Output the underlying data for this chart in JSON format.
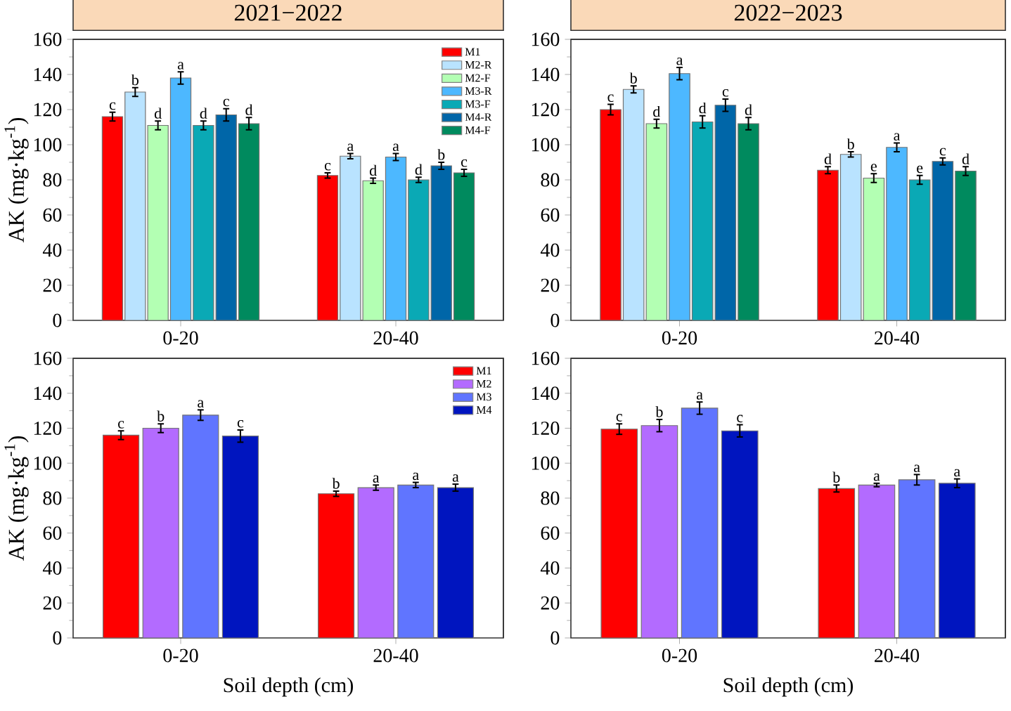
{
  "chart_data": [
    {
      "type": "bar",
      "title": "2021−2022",
      "ylabel": "AK (mg·kg$^{-1}$)",
      "categories": [
        "0-20",
        "20-40"
      ],
      "ylim": [
        0,
        160
      ],
      "yticks": [
        0,
        20,
        40,
        60,
        80,
        100,
        120,
        140,
        160
      ],
      "legend": "top right",
      "series": [
        {
          "name": "M1",
          "color": "#ff0000",
          "values": [
            116,
            82.5
          ],
          "errors": [
            2.5,
            1.5
          ],
          "value_labels": [
            "c",
            "c"
          ]
        },
        {
          "name": "M2-R",
          "color": "#b9e3ff",
          "values": [
            130,
            93.5
          ],
          "errors": [
            2.5,
            1.5
          ],
          "value_labels": [
            "b",
            "a"
          ]
        },
        {
          "name": "M2-F",
          "color": "#b3ffb3",
          "values": [
            111,
            79.5
          ],
          "errors": [
            2.5,
            1.5
          ],
          "value_labels": [
            "d",
            "d"
          ]
        },
        {
          "name": "M3-R",
          "color": "#4db8ff",
          "values": [
            138,
            93
          ],
          "errors": [
            3.5,
            2
          ],
          "value_labels": [
            "a",
            "a"
          ]
        },
        {
          "name": "M3-F",
          "color": "#0aa9b5",
          "values": [
            111,
            80
          ],
          "errors": [
            2.5,
            1.5
          ],
          "value_labels": [
            "d",
            "d"
          ]
        },
        {
          "name": "M4-R",
          "color": "#0066a8",
          "values": [
            117,
            88
          ],
          "errors": [
            3.5,
            2
          ],
          "value_labels": [
            "c",
            "b"
          ]
        },
        {
          "name": "M4-F",
          "color": "#008a5e",
          "values": [
            112,
            84
          ],
          "errors": [
            3.5,
            2
          ],
          "value_labels": [
            "d",
            "c"
          ]
        }
      ]
    },
    {
      "type": "bar",
      "title": "2022−2023",
      "categories": [
        "0-20",
        "20-40"
      ],
      "ylim": [
        0,
        160
      ],
      "yticks": [
        0,
        20,
        40,
        60,
        80,
        100,
        120,
        140,
        160
      ],
      "series": [
        {
          "color": "#ff0000",
          "values": [
            120,
            85.5
          ],
          "errors": [
            3,
            2
          ],
          "value_labels": [
            "c",
            "d"
          ]
        },
        {
          "color": "#b9e3ff",
          "values": [
            131.5,
            94.5
          ],
          "errors": [
            2,
            1.5
          ],
          "value_labels": [
            "b",
            "b"
          ]
        },
        {
          "color": "#b3ffb3",
          "values": [
            112,
            81
          ],
          "errors": [
            2.5,
            2.5
          ],
          "value_labels": [
            "d",
            "e"
          ]
        },
        {
          "color": "#4db8ff",
          "values": [
            140.5,
            98.5
          ],
          "errors": [
            3.5,
            2.5
          ],
          "value_labels": [
            "a",
            "a"
          ]
        },
        {
          "color": "#0aa9b5",
          "values": [
            113,
            80
          ],
          "errors": [
            3.5,
            2.5
          ],
          "value_labels": [
            "d",
            "e"
          ]
        },
        {
          "color": "#0066a8",
          "values": [
            122.5,
            90.5
          ],
          "errors": [
            3.5,
            2
          ],
          "value_labels": [
            "c",
            "c"
          ]
        },
        {
          "color": "#008a5e",
          "values": [
            112,
            85
          ],
          "errors": [
            3.5,
            2.5
          ],
          "value_labels": [
            "d",
            "d"
          ]
        }
      ]
    },
    {
      "type": "bar",
      "xlabel": "Soil depth (cm)",
      "ylabel": "AK (mg·kg$^{-1}$)",
      "categories": [
        "0-20",
        "20-40"
      ],
      "ylim": [
        0,
        160
      ],
      "yticks": [
        0,
        20,
        40,
        60,
        80,
        100,
        120,
        140,
        160
      ],
      "legend": "top right",
      "series": [
        {
          "name": "M1",
          "color": "#ff0000",
          "values": [
            116,
            82.5
          ],
          "errors": [
            2.5,
            1.5
          ],
          "value_labels": [
            "c",
            "b"
          ]
        },
        {
          "name": "M2",
          "color": "#b36bff",
          "values": [
            120,
            86
          ],
          "errors": [
            2.5,
            1.5
          ],
          "value_labels": [
            "b",
            "a"
          ]
        },
        {
          "name": "M3",
          "color": "#6075ff",
          "values": [
            127.5,
            87.5
          ],
          "errors": [
            3,
            1.5
          ],
          "value_labels": [
            "a",
            "a"
          ]
        },
        {
          "name": "M4",
          "color": "#0015bf",
          "values": [
            115.5,
            86
          ],
          "errors": [
            3.5,
            2
          ],
          "value_labels": [
            "c",
            "a"
          ]
        }
      ]
    },
    {
      "type": "bar",
      "xlabel": "Soil depth (cm)",
      "categories": [
        "0-20",
        "20-40"
      ],
      "ylim": [
        0,
        160
      ],
      "yticks": [
        0,
        20,
        40,
        60,
        80,
        100,
        120,
        140,
        160
      ],
      "series": [
        {
          "color": "#ff0000",
          "values": [
            119.5,
            85.5
          ],
          "errors": [
            3,
            2
          ],
          "value_labels": [
            "c",
            "b"
          ]
        },
        {
          "color": "#b36bff",
          "values": [
            121.5,
            87.5
          ],
          "errors": [
            3.5,
            1
          ],
          "value_labels": [
            "b",
            "a"
          ]
        },
        {
          "color": "#6075ff",
          "values": [
            131.5,
            90.5
          ],
          "errors": [
            3.5,
            3
          ],
          "value_labels": [
            "a",
            "a"
          ]
        },
        {
          "color": "#0015bf",
          "values": [
            118.5,
            88.5
          ],
          "errors": [
            3.5,
            2.5
          ],
          "value_labels": [
            "c",
            "a"
          ]
        }
      ]
    }
  ]
}
